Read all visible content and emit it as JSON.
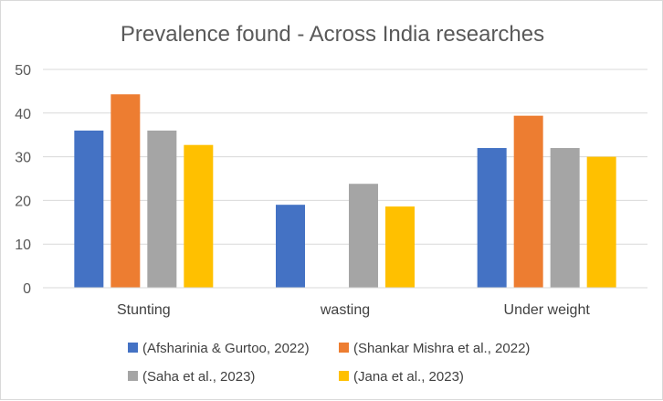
{
  "chart_data": {
    "type": "bar",
    "title": "Prevalence found - Across India researches",
    "categories": [
      "Stunting",
      "wasting",
      "Under weight"
    ],
    "ylim": [
      0,
      50
    ],
    "yticks": [
      0,
      10,
      20,
      30,
      40,
      50
    ],
    "grid": true,
    "legend_position": "bottom",
    "series": [
      {
        "name": "(Afsharinia & Gurtoo, 2022)",
        "color": "#4472C4",
        "values": [
          36,
          19,
          32
        ]
      },
      {
        "name": "(Shankar Mishra et al., 2022)",
        "color": "#ED7D31",
        "values": [
          44.3,
          null,
          39.4
        ]
      },
      {
        "name": "(Saha et al., 2023)",
        "color": "#A5A5A5",
        "values": [
          36,
          23.8,
          32
        ]
      },
      {
        "name": "(Jana et al., 2023)",
        "color": "#FFC000",
        "values": [
          32.7,
          18.6,
          30
        ]
      }
    ]
  }
}
